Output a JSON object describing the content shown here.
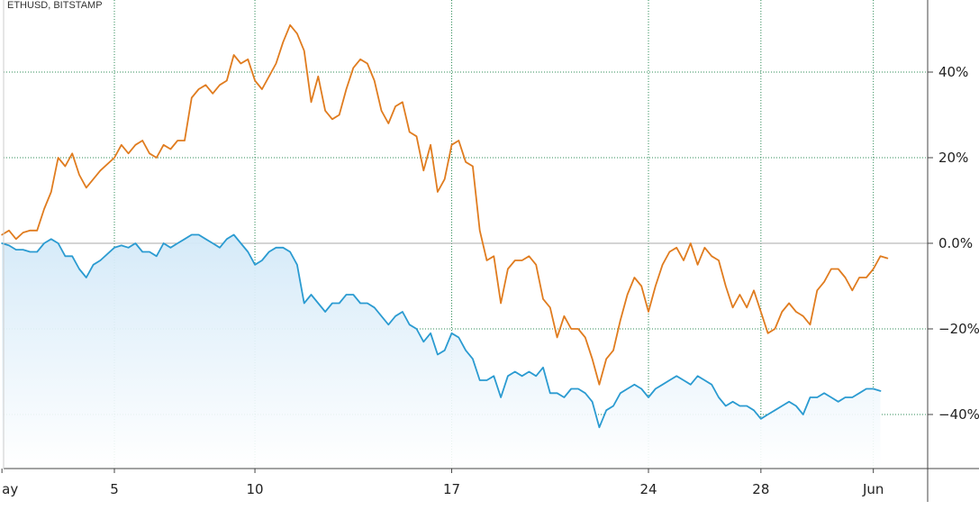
{
  "header": {
    "symbol_label": "ETHUSD, BITSTAMP"
  },
  "colors": {
    "eth_line": "#e07c1f",
    "second_line": "#2b9bd1",
    "second_fill_top": "#d3e9f8",
    "grid": "#2e8b57",
    "zero_line": "#aaaaaa",
    "axis": "#444444"
  },
  "chart_data": {
    "type": "line",
    "y_unit": "%",
    "ylim": [
      -52,
      56
    ],
    "xlim": [
      1,
      34.2
    ],
    "grid": true,
    "x_tick_labels": [
      {
        "x": 1,
        "label": "ay"
      },
      {
        "x": 5,
        "label": "5"
      },
      {
        "x": 10,
        "label": "10"
      },
      {
        "x": 17,
        "label": "17"
      },
      {
        "x": 24,
        "label": "24"
      },
      {
        "x": 28,
        "label": "28"
      },
      {
        "x": 32,
        "label": "Jun"
      }
    ],
    "y_ticks": [
      {
        "value": 40,
        "label": "40%"
      },
      {
        "value": 20,
        "label": "20%"
      },
      {
        "value": 0,
        "label": "0.0%"
      },
      {
        "value": -20,
        "label": "−20%"
      },
      {
        "value": -40,
        "label": "−40%"
      }
    ],
    "series": [
      {
        "name": "ETHUSD",
        "points": [
          [
            1,
            2
          ],
          [
            1.25,
            3
          ],
          [
            1.5,
            1
          ],
          [
            1.75,
            2.5
          ],
          [
            2,
            3
          ],
          [
            2.25,
            3
          ],
          [
            2.5,
            8
          ],
          [
            2.75,
            12
          ],
          [
            3,
            20
          ],
          [
            3.25,
            18
          ],
          [
            3.5,
            21
          ],
          [
            3.75,
            16
          ],
          [
            4,
            13
          ],
          [
            4.25,
            15
          ],
          [
            4.5,
            17
          ],
          [
            5,
            20
          ],
          [
            5.25,
            23
          ],
          [
            5.5,
            21
          ],
          [
            5.75,
            23
          ],
          [
            6,
            24
          ],
          [
            6.25,
            21
          ],
          [
            6.5,
            20
          ],
          [
            6.75,
            23
          ],
          [
            7,
            22
          ],
          [
            7.25,
            24
          ],
          [
            7.5,
            24
          ],
          [
            7.75,
            34
          ],
          [
            8,
            36
          ],
          [
            8.25,
            37
          ],
          [
            8.5,
            35
          ],
          [
            8.75,
            37
          ],
          [
            9,
            38
          ],
          [
            9.25,
            44
          ],
          [
            9.5,
            42
          ],
          [
            9.75,
            43
          ],
          [
            10,
            38
          ],
          [
            10.25,
            36
          ],
          [
            10.5,
            39
          ],
          [
            10.75,
            42
          ],
          [
            11,
            47
          ],
          [
            11.25,
            51
          ],
          [
            11.5,
            49
          ],
          [
            11.75,
            45
          ],
          [
            12,
            33
          ],
          [
            12.25,
            39
          ],
          [
            12.5,
            31
          ],
          [
            12.75,
            29
          ],
          [
            13,
            30
          ],
          [
            13.25,
            36
          ],
          [
            13.5,
            41
          ],
          [
            13.75,
            43
          ],
          [
            14,
            42
          ],
          [
            14.25,
            38
          ],
          [
            14.5,
            31
          ],
          [
            14.75,
            28
          ],
          [
            15,
            32
          ],
          [
            15.25,
            33
          ],
          [
            15.5,
            26
          ],
          [
            15.75,
            25
          ],
          [
            16,
            17
          ],
          [
            16.25,
            23
          ],
          [
            16.5,
            12
          ],
          [
            16.75,
            15
          ],
          [
            17,
            23
          ],
          [
            17.25,
            24
          ],
          [
            17.5,
            19
          ],
          [
            17.75,
            18
          ],
          [
            18,
            3
          ],
          [
            18.25,
            -4
          ],
          [
            18.5,
            -3
          ],
          [
            18.75,
            -14
          ],
          [
            19,
            -6
          ],
          [
            19.25,
            -4
          ],
          [
            19.5,
            -4
          ],
          [
            19.75,
            -3
          ],
          [
            20,
            -5
          ],
          [
            20.25,
            -13
          ],
          [
            20.5,
            -15
          ],
          [
            20.75,
            -22
          ],
          [
            21,
            -17
          ],
          [
            21.25,
            -20
          ],
          [
            21.5,
            -20
          ],
          [
            21.75,
            -22
          ],
          [
            22,
            -27
          ],
          [
            22.25,
            -33
          ],
          [
            22.5,
            -27
          ],
          [
            22.75,
            -25
          ],
          [
            23,
            -18
          ],
          [
            23.25,
            -12
          ],
          [
            23.5,
            -8
          ],
          [
            23.75,
            -10
          ],
          [
            24,
            -16
          ],
          [
            24.25,
            -10
          ],
          [
            24.5,
            -5
          ],
          [
            24.75,
            -2
          ],
          [
            25,
            -1
          ],
          [
            25.25,
            -4
          ],
          [
            25.5,
            0
          ],
          [
            25.75,
            -5
          ],
          [
            26,
            -1
          ],
          [
            26.25,
            -3
          ],
          [
            26.5,
            -4
          ],
          [
            26.75,
            -10
          ],
          [
            27,
            -15
          ],
          [
            27.25,
            -12
          ],
          [
            27.5,
            -15
          ],
          [
            27.75,
            -11
          ],
          [
            28,
            -16
          ],
          [
            28.25,
            -21
          ],
          [
            28.5,
            -20
          ],
          [
            28.75,
            -16
          ],
          [
            29,
            -14
          ],
          [
            29.25,
            -16
          ],
          [
            29.5,
            -17
          ],
          [
            29.75,
            -19
          ],
          [
            30,
            -11
          ],
          [
            30.25,
            -9
          ],
          [
            30.5,
            -6
          ],
          [
            30.75,
            -6
          ],
          [
            31,
            -8
          ],
          [
            31.25,
            -11
          ],
          [
            31.5,
            -8
          ],
          [
            31.75,
            -8
          ],
          [
            32,
            -6
          ],
          [
            32.25,
            -3
          ],
          [
            32.5,
            -3.5
          ]
        ]
      },
      {
        "points": [
          [
            1,
            0
          ],
          [
            1.25,
            -0.5
          ],
          [
            1.5,
            -1.5
          ],
          [
            1.75,
            -1.5
          ],
          [
            2,
            -2
          ],
          [
            2.25,
            -2
          ],
          [
            2.5,
            0
          ],
          [
            2.75,
            1
          ],
          [
            3,
            0
          ],
          [
            3.25,
            -3
          ],
          [
            3.5,
            -3
          ],
          [
            3.75,
            -6
          ],
          [
            4,
            -8
          ],
          [
            4.25,
            -5
          ],
          [
            4.5,
            -4
          ],
          [
            5,
            -1
          ],
          [
            5.25,
            -0.5
          ],
          [
            5.5,
            -1
          ],
          [
            5.75,
            0
          ],
          [
            6,
            -2
          ],
          [
            6.25,
            -2
          ],
          [
            6.5,
            -3
          ],
          [
            6.75,
            0
          ],
          [
            7,
            -1
          ],
          [
            7.25,
            0
          ],
          [
            7.5,
            1
          ],
          [
            7.75,
            2
          ],
          [
            8,
            2
          ],
          [
            8.25,
            1
          ],
          [
            8.5,
            0
          ],
          [
            8.75,
            -1
          ],
          [
            9,
            1
          ],
          [
            9.25,
            2
          ],
          [
            9.5,
            0
          ],
          [
            9.75,
            -2
          ],
          [
            10,
            -5
          ],
          [
            10.25,
            -4
          ],
          [
            10.5,
            -2
          ],
          [
            10.75,
            -1
          ],
          [
            11,
            -1
          ],
          [
            11.25,
            -2
          ],
          [
            11.5,
            -5
          ],
          [
            11.75,
            -14
          ],
          [
            12,
            -12
          ],
          [
            12.25,
            -14
          ],
          [
            12.5,
            -16
          ],
          [
            12.75,
            -14
          ],
          [
            13,
            -14
          ],
          [
            13.25,
            -12
          ],
          [
            13.5,
            -12
          ],
          [
            13.75,
            -14
          ],
          [
            14,
            -14
          ],
          [
            14.25,
            -15
          ],
          [
            14.5,
            -17
          ],
          [
            14.75,
            -19
          ],
          [
            15,
            -17
          ],
          [
            15.25,
            -16
          ],
          [
            15.5,
            -19
          ],
          [
            15.75,
            -20
          ],
          [
            16,
            -23
          ],
          [
            16.25,
            -21
          ],
          [
            16.5,
            -26
          ],
          [
            16.75,
            -25
          ],
          [
            17,
            -21
          ],
          [
            17.25,
            -22
          ],
          [
            17.5,
            -25
          ],
          [
            17.75,
            -27
          ],
          [
            18,
            -32
          ],
          [
            18.25,
            -32
          ],
          [
            18.5,
            -31
          ],
          [
            18.75,
            -36
          ],
          [
            19,
            -31
          ],
          [
            19.25,
            -30
          ],
          [
            19.5,
            -31
          ],
          [
            19.75,
            -30
          ],
          [
            20,
            -31
          ],
          [
            20.25,
            -29
          ],
          [
            20.5,
            -35
          ],
          [
            20.75,
            -35
          ],
          [
            21,
            -36
          ],
          [
            21.25,
            -34
          ],
          [
            21.5,
            -34
          ],
          [
            21.75,
            -35
          ],
          [
            22,
            -37
          ],
          [
            22.25,
            -43
          ],
          [
            22.5,
            -39
          ],
          [
            22.75,
            -38
          ],
          [
            23,
            -35
          ],
          [
            23.25,
            -34
          ],
          [
            23.5,
            -33
          ],
          [
            23.75,
            -34
          ],
          [
            24,
            -36
          ],
          [
            24.25,
            -34
          ],
          [
            24.5,
            -33
          ],
          [
            24.75,
            -32
          ],
          [
            25,
            -31
          ],
          [
            25.25,
            -32
          ],
          [
            25.5,
            -33
          ],
          [
            25.75,
            -31
          ],
          [
            26,
            -32
          ],
          [
            26.25,
            -33
          ],
          [
            26.5,
            -36
          ],
          [
            26.75,
            -38
          ],
          [
            27,
            -37
          ],
          [
            27.25,
            -38
          ],
          [
            27.5,
            -38
          ],
          [
            27.75,
            -39
          ],
          [
            28,
            -41
          ],
          [
            28.25,
            -40
          ],
          [
            28.5,
            -39
          ],
          [
            28.75,
            -38
          ],
          [
            29,
            -37
          ],
          [
            29.25,
            -38
          ],
          [
            29.5,
            -40
          ],
          [
            29.75,
            -36
          ],
          [
            30,
            -36
          ],
          [
            30.25,
            -35
          ],
          [
            30.5,
            -36
          ],
          [
            30.75,
            -37
          ],
          [
            31,
            -36
          ],
          [
            31.25,
            -36
          ],
          [
            31.5,
            -35
          ],
          [
            31.75,
            -34
          ],
          [
            32,
            -34
          ],
          [
            32.25,
            -34.5
          ]
        ]
      }
    ]
  }
}
